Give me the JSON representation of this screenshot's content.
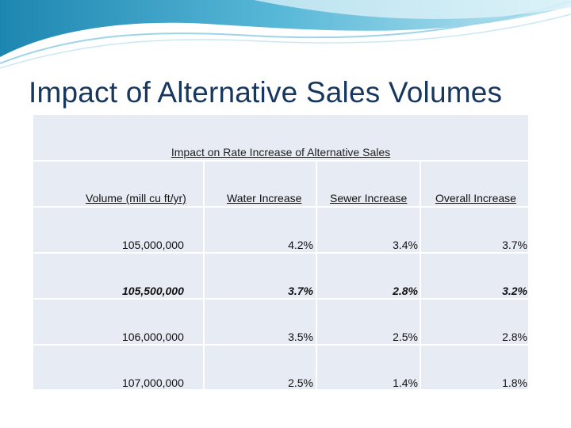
{
  "slide": {
    "title": "Impact of Alternative Sales Volumes"
  },
  "table": {
    "caption": "Impact on Rate Increase of Alternative Sales",
    "headers": [
      "Volume (mill cu ft/yr)",
      "Water Increase",
      "Sewer Increase",
      "Overall Increase"
    ],
    "rows": [
      {
        "volume": "105,000,000",
        "water": "4.2%",
        "sewer": "3.4%",
        "overall": "3.7%",
        "emphasis": false
      },
      {
        "volume": "105,500,000",
        "water": "3.7%",
        "sewer": "2.8%",
        "overall": "3.2%",
        "emphasis": true
      },
      {
        "volume": "106,000,000",
        "water": "3.5%",
        "sewer": "2.5%",
        "overall": "2.8%",
        "emphasis": false
      },
      {
        "volume": "107,000,000",
        "water": "2.5%",
        "sewer": "1.4%",
        "overall": "1.8%",
        "emphasis": false
      }
    ]
  },
  "colors": {
    "title": "#17375e",
    "table_fill": "#e7ebf4",
    "wave_dark": "#2a8fb5",
    "wave_light": "#8fd0e6"
  }
}
